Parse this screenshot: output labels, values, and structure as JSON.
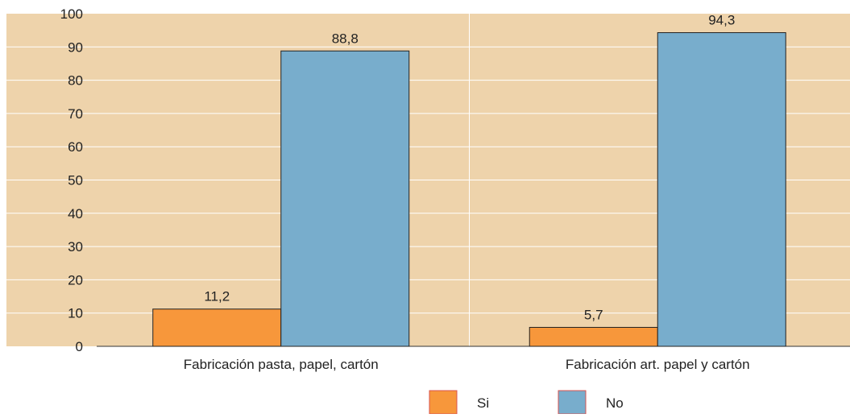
{
  "chart_data": {
    "type": "bar",
    "title": "",
    "xlabel": "",
    "ylabel": "",
    "ylim": [
      0,
      100
    ],
    "yticks": [
      0,
      10,
      20,
      30,
      40,
      50,
      60,
      70,
      80,
      90,
      100
    ],
    "categories": [
      "Fabricación pasta, papel, cartón",
      "Fabricación art. papel y cartón"
    ],
    "series": [
      {
        "name": "Si",
        "color": "#f7973b",
        "values": [
          11.2,
          5.7
        ],
        "labels": [
          "11,2",
          "5,7"
        ]
      },
      {
        "name": "No",
        "color": "#78adcc",
        "values": [
          88.8,
          94.3
        ],
        "labels": [
          "88,8",
          "94,3"
        ]
      }
    ],
    "grid": true,
    "legend_position": "bottom-center",
    "plot_background": "#eed3ab",
    "gridline_color": "#ffffff"
  }
}
